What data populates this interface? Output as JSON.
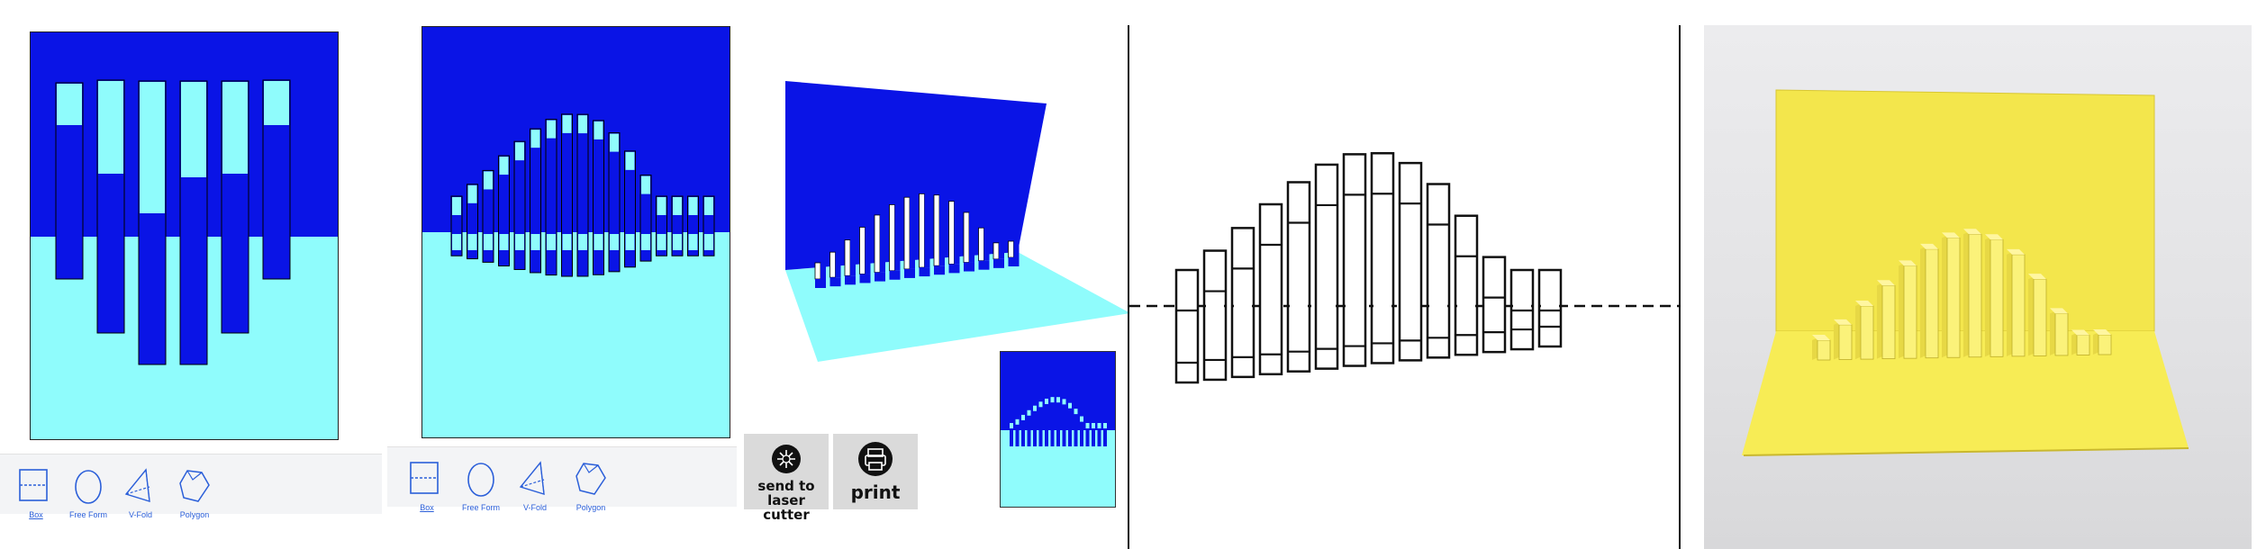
{
  "colors": {
    "dark_blue": "#0a14e6",
    "cyan": "#8ffcfc",
    "paper_yellow": "#f6ea4c",
    "photo_bg": "#e9e9eb",
    "pattern_line": "#111111"
  },
  "toolbar_1": {
    "tools": [
      {
        "icon": "box-fold-icon",
        "label": "Box"
      },
      {
        "icon": "free-form-icon",
        "label": "Free Form"
      },
      {
        "icon": "v-fold-icon",
        "label": "V-Fold"
      },
      {
        "icon": "polygon-icon",
        "label": "Polygon"
      }
    ]
  },
  "toolbar_2": {
    "tools": [
      {
        "icon": "box-fold-icon",
        "label": "Box"
      },
      {
        "icon": "free-form-icon",
        "label": "Free Form"
      },
      {
        "icon": "v-fold-icon",
        "label": "V-Fold"
      },
      {
        "icon": "polygon-icon",
        "label": "Polygon"
      }
    ]
  },
  "actions": {
    "laser": {
      "icon": "laser-cutter-icon",
      "line1": "send to",
      "line2": "laser cutter"
    },
    "print": {
      "icon": "printer-icon",
      "label": "print"
    }
  }
}
